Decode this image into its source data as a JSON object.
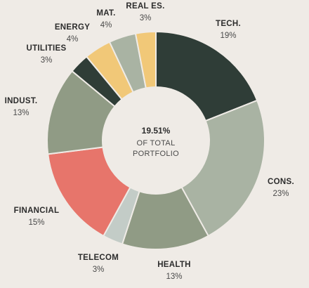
{
  "chart_data": {
    "type": "pie",
    "center": {
      "value": "19.51%",
      "line1": "OF TOTAL",
      "line2": "PORTFOLIO"
    },
    "slices": [
      {
        "label": "TECH.",
        "value_text": "19%",
        "value": 19,
        "color": "#2f3d37"
      },
      {
        "label": "CONS.",
        "value_text": "23%",
        "value": 23,
        "color": "#a9b3a3"
      },
      {
        "label": "HEALTH",
        "value_text": "13%",
        "value": 13,
        "color": "#909b85"
      },
      {
        "label": "TELECOM",
        "value_text": "3%",
        "value": 3,
        "color": "#c3ccc7"
      },
      {
        "label": "FINANCIAL",
        "value_text": "15%",
        "value": 15,
        "color": "#e7756b"
      },
      {
        "label": "INDUST.",
        "value_text": "13%",
        "value": 13,
        "color": "#909b85"
      },
      {
        "label": "UTILITIES",
        "value_text": "3%",
        "value": 3,
        "color": "#2f3d37"
      },
      {
        "label": "ENERGY",
        "value_text": "4%",
        "value": 4,
        "color": "#f1c878"
      },
      {
        "label": "MAT.",
        "value_text": "4%",
        "value": 4,
        "color": "#a9b3a3"
      },
      {
        "label": "REAL ES.",
        "value_text": "3%",
        "value": 3,
        "color": "#f1c878"
      }
    ]
  }
}
